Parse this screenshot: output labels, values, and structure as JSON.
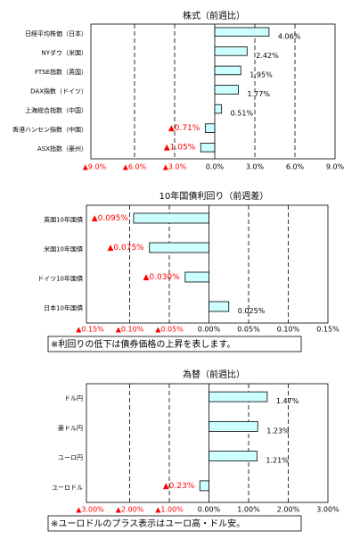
{
  "chart_data": [
    {
      "type": "bar",
      "orientation": "horizontal",
      "title": "株式（前週比）",
      "categories": [
        "日経平均株価（日本）",
        "NYダウ（米国）",
        "FTSE指数（英国）",
        "DAX指数（ドイツ）",
        "上海総合指数（中国）",
        "香港ハンセン指数（中国）",
        "ASX指数（豪州）"
      ],
      "values": [
        4.06,
        2.42,
        1.95,
        1.77,
        0.51,
        -0.71,
        -1.05
      ],
      "value_labels": [
        "4.06%",
        "2.42%",
        "1.95%",
        "1.77%",
        "0.51%",
        "▲0.71%",
        "▲1.05%"
      ],
      "color": "#ccffff",
      "edge_color": "#000000",
      "negative_label_color": "#ff0000",
      "xlim": [
        -9,
        9
      ],
      "xticks": [
        {
          "value": -9,
          "label": "▲9.0%"
        },
        {
          "value": -6,
          "label": "▲6.0%"
        },
        {
          "value": -3,
          "label": "▲3.0%"
        },
        {
          "value": 0,
          "label": "0.0%"
        },
        {
          "value": 3,
          "label": "3.0%"
        },
        {
          "value": 6,
          "label": "6.0%"
        },
        {
          "value": 9,
          "label": "9.0%"
        }
      ],
      "grid": true
    },
    {
      "type": "bar",
      "orientation": "horizontal",
      "title": "10年国債利回り（前週差）",
      "categories": [
        "英国10年国債",
        "米国10年国債",
        "ドイツ10年国債",
        "日本10年国債"
      ],
      "values": [
        -0.095,
        -0.075,
        -0.03,
        0.025
      ],
      "value_labels": [
        "▲0.095%",
        "▲0.075%",
        "▲0.030%",
        "0.025%"
      ],
      "color": "#ccffff",
      "edge_color": "#000000",
      "negative_label_color": "#ff0000",
      "xlim": [
        -0.15,
        0.15
      ],
      "xticks": [
        {
          "value": -0.15,
          "label": "▲0.15%"
        },
        {
          "value": -0.1,
          "label": "▲0.10%"
        },
        {
          "value": -0.05,
          "label": "▲0.05%"
        },
        {
          "value": 0,
          "label": "0.00%"
        },
        {
          "value": 0.05,
          "label": "0.05%"
        },
        {
          "value": 0.1,
          "label": "0.10%"
        },
        {
          "value": 0.15,
          "label": "0.15%"
        }
      ],
      "grid": true,
      "note": "※利回りの低下は債券価格の上昇を表します。"
    },
    {
      "type": "bar",
      "orientation": "horizontal",
      "title": "為替（前週比）",
      "categories": [
        "ドル円",
        "豪ドル円",
        "ユーロ円",
        "ユーロドル"
      ],
      "values": [
        1.47,
        1.23,
        1.21,
        -0.23
      ],
      "value_labels": [
        "1.47%",
        "1.23%",
        "1.21%",
        "▲0.23%"
      ],
      "color": "#ccffff",
      "edge_color": "#000000",
      "negative_label_color": "#ff0000",
      "xlim": [
        -3,
        3
      ],
      "xticks": [
        {
          "value": -3,
          "label": "▲3.00%"
        },
        {
          "value": -2,
          "label": "▲2.00%"
        },
        {
          "value": -1,
          "label": "▲1.00%"
        },
        {
          "value": 0,
          "label": "0.00%"
        },
        {
          "value": 1,
          "label": "1.00%"
        },
        {
          "value": 2,
          "label": "2.00%"
        },
        {
          "value": 3,
          "label": "3.00%"
        }
      ],
      "grid": true,
      "note": "※ユーロドルのプラス表示はユーロ高・ドル安。"
    }
  ]
}
